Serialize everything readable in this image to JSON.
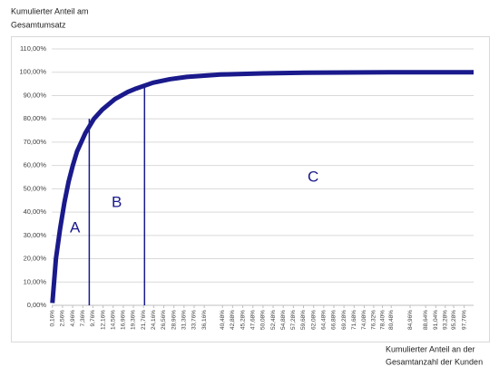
{
  "chart_data": {
    "type": "line",
    "y_label": [
      "Kumulierter Anteil am",
      "Gesamtumsatz"
    ],
    "x_label": [
      "Kumulierter Anteil an der",
      "Gesamtanzahl der Kunden"
    ],
    "x": [
      0.16,
      1,
      2,
      3,
      4,
      5,
      6,
      8,
      10,
      12,
      15,
      18,
      20,
      24,
      28,
      32,
      40,
      50,
      60,
      80,
      100
    ],
    "values": [
      1,
      20,
      33,
      44,
      53,
      60,
      66,
      74,
      80,
      84,
      88.5,
      91.5,
      93,
      95.5,
      97,
      98,
      99,
      99.5,
      99.8,
      100,
      100
    ],
    "color": "#1a1a8c",
    "xlim": [
      0,
      100
    ],
    "ylim": [
      0,
      110
    ],
    "grid": true,
    "yticks": [
      {
        "value": 0,
        "label": "0,00%"
      },
      {
        "value": 10,
        "label": "10,00%"
      },
      {
        "value": 20,
        "label": "20,00%"
      },
      {
        "value": 30,
        "label": "30,00%"
      },
      {
        "value": 40,
        "label": "40,00%"
      },
      {
        "value": 50,
        "label": "50,00%"
      },
      {
        "value": 60,
        "label": "60,00%"
      },
      {
        "value": 70,
        "label": "70,00%"
      },
      {
        "value": 80,
        "label": "80,00%"
      },
      {
        "value": 90,
        "label": "90,00%"
      },
      {
        "value": 100,
        "label": "100,00%"
      },
      {
        "value": 110,
        "label": "110,00%"
      }
    ],
    "xticks": [
      {
        "value": 0.16,
        "label": "0,16%"
      },
      {
        "value": 2.56,
        "label": "2,56%"
      },
      {
        "value": 4.96,
        "label": "4,96%"
      },
      {
        "value": 7.36,
        "label": "7,36%"
      },
      {
        "value": 9.76,
        "label": "9,76%"
      },
      {
        "value": 12.16,
        "label": "12,16%"
      },
      {
        "value": 14.56,
        "label": "14,56%"
      },
      {
        "value": 16.96,
        "label": "16,96%"
      },
      {
        "value": 19.36,
        "label": "19,36%"
      },
      {
        "value": 21.76,
        "label": "21,76%"
      },
      {
        "value": 24.16,
        "label": "24,16%"
      },
      {
        "value": 26.56,
        "label": "26,56%"
      },
      {
        "value": 28.96,
        "label": "28,96%"
      },
      {
        "value": 31.36,
        "label": "31,36%"
      },
      {
        "value": 33.76,
        "label": "33,76%"
      },
      {
        "value": 36.16,
        "label": "36,16%"
      },
      {
        "value": 40.48,
        "label": "40,48%"
      },
      {
        "value": 42.88,
        "label": "42,88%"
      },
      {
        "value": 45.28,
        "label": "45,28%"
      },
      {
        "value": 47.68,
        "label": "47,68%"
      },
      {
        "value": 50.08,
        "label": "50,08%"
      },
      {
        "value": 52.48,
        "label": "52,48%"
      },
      {
        "value": 54.88,
        "label": "54,88%"
      },
      {
        "value": 57.28,
        "label": "57,28%"
      },
      {
        "value": 59.68,
        "label": "59,68%"
      },
      {
        "value": 62.08,
        "label": "62,08%"
      },
      {
        "value": 64.48,
        "label": "64,48%"
      },
      {
        "value": 66.88,
        "label": "66,88%"
      },
      {
        "value": 69.28,
        "label": "69,28%"
      },
      {
        "value": 71.68,
        "label": "71,68%"
      },
      {
        "value": 74.08,
        "label": "74,08%"
      },
      {
        "value": 76.32,
        "label": "76,32%"
      },
      {
        "value": 78.4,
        "label": "78,40%"
      },
      {
        "value": 80.48,
        "label": "80,48%"
      },
      {
        "value": 84.96,
        "label": "84,96%"
      },
      {
        "value": 88.64,
        "label": "88,64%"
      },
      {
        "value": 91.04,
        "label": "91,04%"
      },
      {
        "value": 93.28,
        "label": "93,28%"
      },
      {
        "value": 95.28,
        "label": "95,28%"
      },
      {
        "value": 97.76,
        "label": "97,76%"
      }
    ],
    "boundaries": [
      {
        "x": 8.9,
        "y": 80
      },
      {
        "x": 22,
        "y": 95
      }
    ],
    "annotations": [
      "A",
      "B",
      "C"
    ]
  }
}
